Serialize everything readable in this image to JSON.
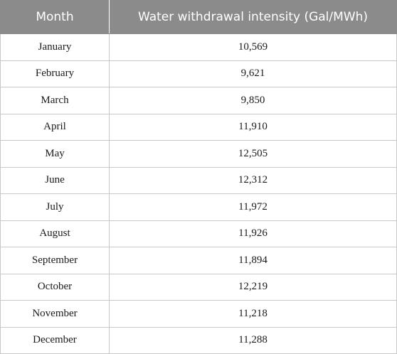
{
  "table": {
    "headers": {
      "month": "Month",
      "value": "Water withdrawal intensity (Gal/MWh)"
    },
    "rows": [
      {
        "month": "January",
        "value": "10,569"
      },
      {
        "month": "February",
        "value": "9,621"
      },
      {
        "month": "March",
        "value": "9,850"
      },
      {
        "month": "April",
        "value": "11,910"
      },
      {
        "month": "May",
        "value": "12,505"
      },
      {
        "month": "June",
        "value": "12,312"
      },
      {
        "month": "July",
        "value": "11,972"
      },
      {
        "month": "August",
        "value": "11,926"
      },
      {
        "month": "September",
        "value": "11,894"
      },
      {
        "month": "October",
        "value": "12,219"
      },
      {
        "month": "November",
        "value": "11,218"
      },
      {
        "month": "December",
        "value": "11,288"
      }
    ]
  }
}
